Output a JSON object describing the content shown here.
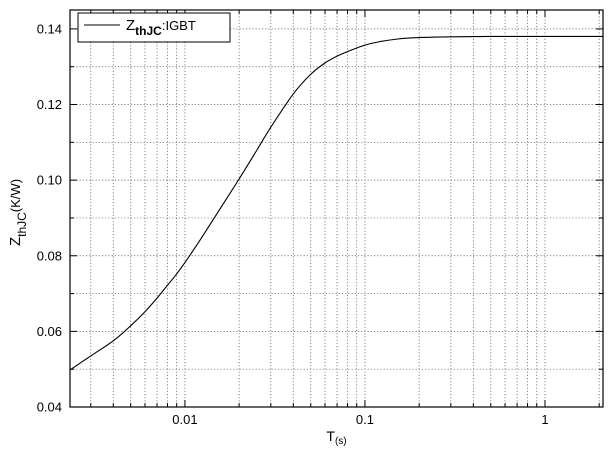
{
  "chart_data": {
    "type": "line",
    "x_scale": "log",
    "xlim": [
      0.0023,
      2.1
    ],
    "ylim": [
      0.04,
      0.145
    ],
    "xlabel": {
      "main": "T",
      "sub": "(s)"
    },
    "ylabel": {
      "main": "Z",
      "sub": "thJC",
      "suffix": "(K/W)"
    },
    "x_ticks": [
      {
        "value": 0.01,
        "label": "0.01"
      },
      {
        "value": 0.1,
        "label": "0.1"
      },
      {
        "value": 1,
        "label": "1"
      }
    ],
    "y_ticks": [
      {
        "value": 0.04,
        "label": "0.04"
      },
      {
        "value": 0.06,
        "label": "0.06"
      },
      {
        "value": 0.08,
        "label": "0.08"
      },
      {
        "value": 0.1,
        "label": "0.10"
      },
      {
        "value": 0.12,
        "label": "0.12"
      },
      {
        "value": 0.14,
        "label": "0.14"
      }
    ],
    "grid": true,
    "legend_position": "top-left",
    "series": [
      {
        "legend": {
          "main": "Z",
          "sub": "thJC",
          "suffix": ":IGBT"
        },
        "color": "#000000",
        "x": [
          0.0023,
          0.003,
          0.004,
          0.005,
          0.006,
          0.007,
          0.008,
          0.009,
          0.01,
          0.012,
          0.015,
          0.02,
          0.025,
          0.03,
          0.04,
          0.05,
          0.06,
          0.07,
          0.08,
          0.1,
          0.12,
          0.15,
          0.2,
          0.3,
          0.5,
          1,
          2.1
        ],
        "y": [
          0.0498,
          0.0535,
          0.0575,
          0.0615,
          0.0652,
          0.0688,
          0.0722,
          0.0752,
          0.0782,
          0.0838,
          0.091,
          0.1003,
          0.1078,
          0.114,
          0.1228,
          0.128,
          0.131,
          0.1328,
          0.134,
          0.1357,
          0.1366,
          0.1373,
          0.1377,
          0.1379,
          0.138,
          0.138,
          0.138
        ]
      }
    ]
  }
}
